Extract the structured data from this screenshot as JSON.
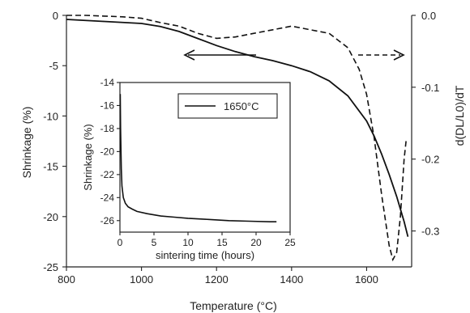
{
  "chart_data": {
    "type": "line",
    "xlabel": "Temperature (°C)",
    "ylabel_left": "Shrinkage (%)",
    "ylabel_right": "d(DL/L0)/dT",
    "xlim": [
      800,
      1720
    ],
    "ylim_left": [
      -25,
      0
    ],
    "ylim_right": [
      -0.35,
      0.0
    ],
    "x_ticks": [
      800,
      1000,
      1200,
      1400,
      1600
    ],
    "y_left_ticks": [
      0,
      -5,
      -10,
      -15,
      -20,
      -25
    ],
    "y_right_ticks": [
      0.0,
      -0.1,
      -0.2,
      -0.3
    ],
    "y_right_tick_labels": [
      "0.0",
      "-0.1",
      "-0.2",
      "-0.3"
    ],
    "series": [
      {
        "axis": "left",
        "style": "solid",
        "x": [
          800,
          900,
          1000,
          1050,
          1100,
          1150,
          1200,
          1250,
          1300,
          1350,
          1400,
          1450,
          1500,
          1550,
          1600,
          1620,
          1640,
          1660,
          1680,
          1700,
          1710
        ],
        "y": [
          -0.4,
          -0.6,
          -0.8,
          -1.1,
          -1.6,
          -2.3,
          -3.0,
          -3.6,
          -4.1,
          -4.5,
          -5.0,
          -5.6,
          -6.5,
          -8.0,
          -10.5,
          -12.0,
          -13.8,
          -15.8,
          -18.0,
          -20.5,
          -22.0
        ]
      },
      {
        "axis": "right",
        "style": "dashed",
        "x": [
          800,
          850,
          900,
          950,
          1000,
          1050,
          1100,
          1150,
          1200,
          1250,
          1300,
          1350,
          1400,
          1450,
          1500,
          1550,
          1580,
          1600,
          1620,
          1640,
          1660,
          1670,
          1680,
          1690,
          1700,
          1705
        ],
        "y": [
          0.0,
          0.0,
          -0.001,
          -0.002,
          -0.004,
          -0.01,
          -0.015,
          -0.025,
          -0.032,
          -0.03,
          -0.025,
          -0.02,
          -0.015,
          -0.02,
          -0.025,
          -0.045,
          -0.075,
          -0.11,
          -0.17,
          -0.25,
          -0.32,
          -0.34,
          -0.33,
          -0.28,
          -0.2,
          -0.175
        ]
      }
    ],
    "inset": {
      "type": "line",
      "legend": "1650°C",
      "xlabel": "sintering time (hours)",
      "ylabel": "Shrinkage (%)",
      "xlim": [
        0,
        25
      ],
      "ylim": [
        -27,
        -14
      ],
      "x_ticks": [
        0,
        5,
        10,
        15,
        20,
        25
      ],
      "y_ticks": [
        -14,
        -16,
        -18,
        -20,
        -22,
        -24,
        -26
      ],
      "x": [
        0.05,
        0.1,
        0.2,
        0.3,
        0.5,
        0.8,
        1.2,
        1.8,
        2.5,
        4,
        6,
        8,
        10,
        13,
        16,
        19,
        22,
        23
      ],
      "y": [
        -15.0,
        -18.0,
        -21.5,
        -23.0,
        -24.0,
        -24.5,
        -24.8,
        -25.0,
        -25.2,
        -25.4,
        -25.6,
        -25.7,
        -25.8,
        -25.9,
        -26.0,
        -26.05,
        -26.1,
        -26.1
      ]
    }
  }
}
